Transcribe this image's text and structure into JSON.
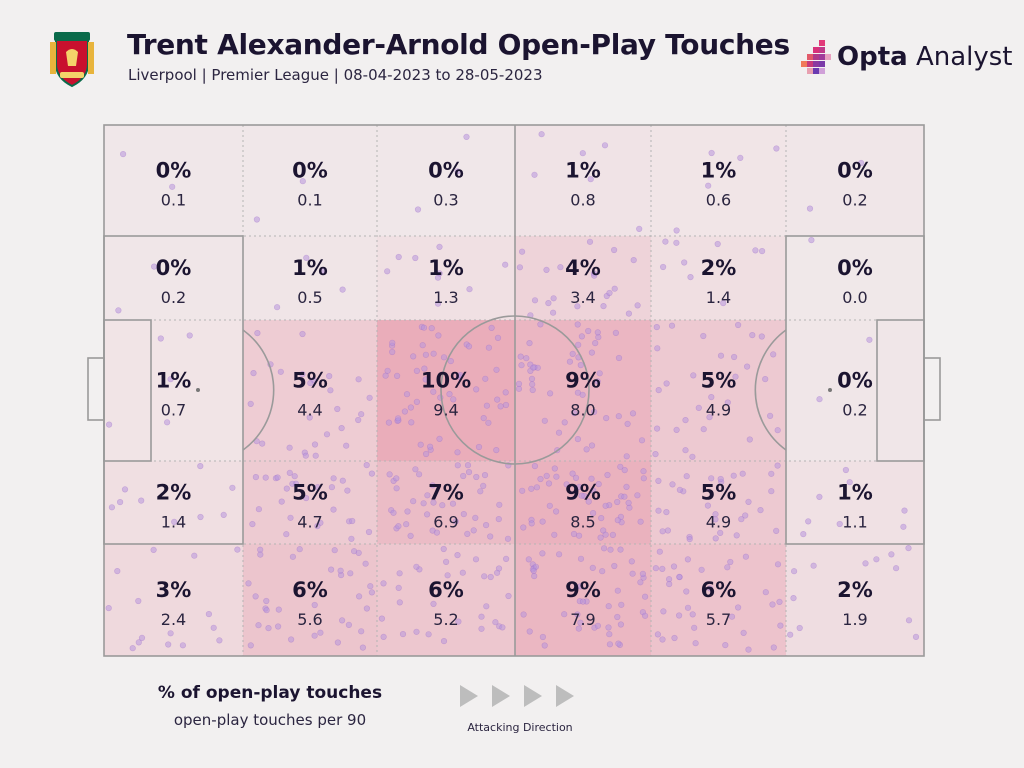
{
  "header": {
    "title": "Trent Alexander-Arnold Open-Play Touches",
    "subtitle": "Liverpool | Premier League | 08-04-2023 to 28-05-2023",
    "brand_bold": "Opta",
    "brand_light": " Analyst"
  },
  "legend": {
    "pct_label": "% of open-play touches",
    "p90_label": "open-play touches per 90"
  },
  "direction_label": "Attacking Direction",
  "colors": {
    "background": "#f2f0f0",
    "zone_fill": "#e05a78",
    "touch_dot": "#b896dc",
    "pitch_line": "#9a9a9a"
  },
  "chart_data": {
    "type": "heatmap",
    "title": "Trent Alexander-Arnold Open-Play Touches",
    "columns": 6,
    "rows": [
      [
        {
          "pct": "0%",
          "p90": "0.1"
        },
        {
          "pct": "0%",
          "p90": "0.1"
        },
        {
          "pct": "0%",
          "p90": "0.3"
        },
        {
          "pct": "1%",
          "p90": "0.8"
        },
        {
          "pct": "1%",
          "p90": "0.6"
        },
        {
          "pct": "0%",
          "p90": "0.2"
        }
      ],
      [
        {
          "pct": "0%",
          "p90": "0.2"
        },
        {
          "pct": "1%",
          "p90": "0.5"
        },
        {
          "pct": "1%",
          "p90": "1.3"
        },
        {
          "pct": "4%",
          "p90": "3.4"
        },
        {
          "pct": "2%",
          "p90": "1.4"
        },
        {
          "pct": "0%",
          "p90": "0.0"
        }
      ],
      [
        {
          "pct": "1%",
          "p90": "0.7"
        },
        {
          "pct": "5%",
          "p90": "4.4"
        },
        {
          "pct": "10%",
          "p90": "9.4"
        },
        {
          "pct": "9%",
          "p90": "8.0"
        },
        {
          "pct": "5%",
          "p90": "4.9"
        },
        {
          "pct": "0%",
          "p90": "0.2"
        }
      ],
      [
        {
          "pct": "2%",
          "p90": "1.4"
        },
        {
          "pct": "5%",
          "p90": "4.7"
        },
        {
          "pct": "7%",
          "p90": "6.9"
        },
        {
          "pct": "9%",
          "p90": "8.5"
        },
        {
          "pct": "5%",
          "p90": "4.9"
        },
        {
          "pct": "1%",
          "p90": "1.1"
        }
      ],
      [
        {
          "pct": "3%",
          "p90": "2.4"
        },
        {
          "pct": "6%",
          "p90": "5.6"
        },
        {
          "pct": "6%",
          "p90": "5.2"
        },
        {
          "pct": "9%",
          "p90": "7.9"
        },
        {
          "pct": "6%",
          "p90": "5.7"
        },
        {
          "pct": "2%",
          "p90": "1.9"
        }
      ]
    ]
  }
}
